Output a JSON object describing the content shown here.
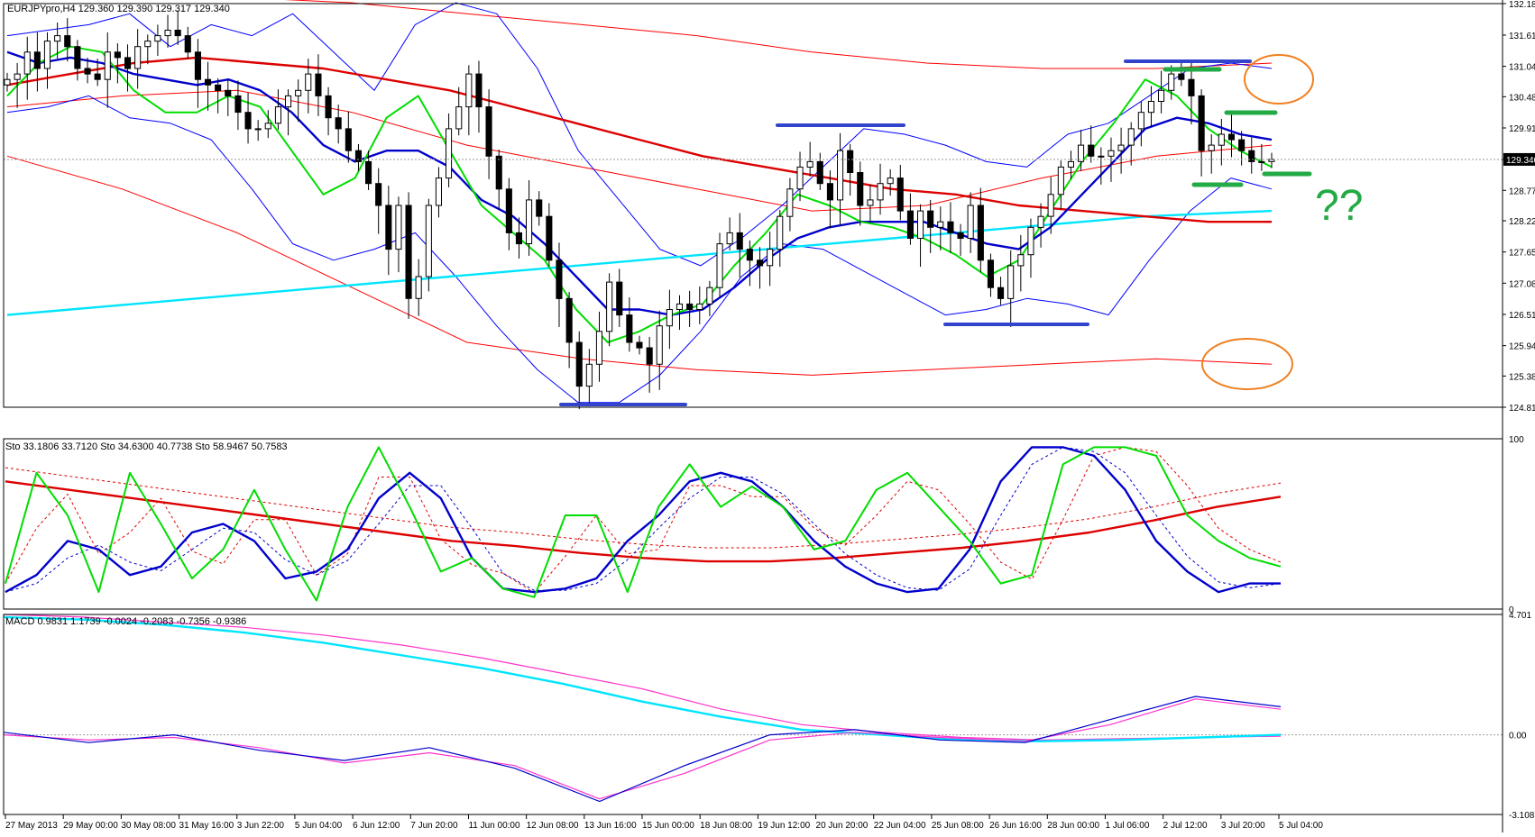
{
  "colors": {
    "background": "#ffffff",
    "frame": "#000000",
    "candle_up_body": "#ffffff",
    "candle_down_body": "#000000",
    "bollinger_red": "#ff0000",
    "bollinger_blue": "#0000ff",
    "ma_green": "#00dd00",
    "ma_blue": "#0000cc",
    "ma_red": "#dd0000",
    "ma_cyan": "#00e5ff",
    "annotation_blue": "#3344cc",
    "annotation_green": "#22aa44",
    "annotation_orange": "#f08020",
    "macd_magenta": "#ff33cc",
    "macd_cyan": "#00e5ff",
    "price_label_bg": "#000000",
    "price_label_fg": "#ffffff"
  },
  "main_panel": {
    "header": "EURJPYpro,H4  129.360 129.390 129.317 129.340",
    "y_ticks": [
      "132.185",
      "131.610",
      "131.040",
      "130.485",
      "129.915",
      "129.340",
      "128.775",
      "128.220",
      "127.650",
      "127.080",
      "126.510",
      "125.940",
      "125.385",
      "124.815"
    ],
    "current_price_label": "129.340",
    "question_annotation": "??"
  },
  "stoch_panel": {
    "header": "Sto 33.1806 33.7120  Sto 34.6300 40.7738  Sto 58.9467 50.7583",
    "y_ticks": [
      "100",
      "0"
    ]
  },
  "macd_panel": {
    "header": "MACD 0.9831 1.1739 -0.0024 -0.2083 -0.7356 -0.9386",
    "y_ticks": [
      "4.701",
      "0.00",
      "-3.1087"
    ]
  },
  "x_ticks": [
    "27 May 2013",
    "29 May 00:00",
    "30 May 08:00",
    "31 May 16:00",
    "3 Jun 22:00",
    "5 Jun 04:00",
    "6 Jun 12:00",
    "7 Jun 20:00",
    "11 Jun 00:00",
    "12 Jun 08:00",
    "13 Jun 16:00",
    "15 Jun 00:00",
    "18 Jun 08:00",
    "19 Jun 12:00",
    "20 Jun 20:00",
    "22 Jun 04:00",
    "25 Jun 08:00",
    "26 Jun 16:00",
    "28 Jun 00:00",
    "1 Jul 06:00",
    "2 Jul 12:00",
    "3 Jul 20:00",
    "5 Jul 04:00"
  ],
  "chart_data": [
    {
      "type": "line",
      "subtype": "candlestick",
      "ylim": [
        124.815,
        132.185
      ],
      "x_ticks": [
        "27 May 2013",
        "29 May 00:00",
        "30 May 08:00",
        "31 May 16:00",
        "3 Jun 22:00",
        "5 Jun 04:00",
        "6 Jun 12:00",
        "7 Jun 20:00",
        "11 Jun 00:00",
        "12 Jun 08:00",
        "13 Jun 16:00",
        "15 Jun 00:00",
        "18 Jun 08:00",
        "19 Jun 12:00",
        "20 Jun 20:00",
        "22 Jun 04:00",
        "25 Jun 08:00",
        "26 Jun 16:00",
        "28 Jun 00:00",
        "1 Jul 06:00",
        "2 Jul 12:00",
        "3 Jul 20:00",
        "5 Jul 04:00"
      ],
      "series": [
        {
          "role": "price_close",
          "color": "#000000",
          "values": [
            130.8,
            130.9,
            131.3,
            131.0,
            131.5,
            131.6,
            131.4,
            131.0,
            130.9,
            130.8,
            131.3,
            131.2,
            131.0,
            131.4,
            131.5,
            131.6,
            131.7,
            131.6,
            131.3,
            130.8,
            130.7,
            130.6,
            130.5,
            130.2,
            129.9,
            129.9,
            130.0,
            130.3,
            130.5,
            130.6,
            130.9,
            130.5,
            130.1,
            129.9,
            129.5,
            129.3,
            128.9,
            128.5,
            127.7,
            128.5,
            126.8,
            127.2,
            128.5,
            129.0,
            129.9,
            130.3,
            130.9,
            130.3,
            129.4,
            128.8,
            128.0,
            127.8,
            128.6,
            128.3,
            127.5,
            126.8,
            126.0,
            125.2,
            125.6,
            126.2,
            127.1,
            126.5,
            126.0,
            125.9,
            125.6,
            126.3,
            126.6,
            126.7,
            126.6,
            126.7,
            127.0,
            127.8,
            128.0,
            127.7,
            127.5,
            127.4,
            127.7,
            128.3,
            128.8,
            129.2,
            129.3,
            128.9,
            128.6,
            129.5,
            129.1,
            128.5,
            128.6,
            128.9,
            129.0,
            128.4,
            127.9,
            128.4,
            128.1,
            128.2,
            128.0,
            127.9,
            128.5,
            127.5,
            127.0,
            126.8,
            127.4,
            127.6,
            128.1,
            128.3,
            128.7,
            129.2,
            129.3,
            129.6,
            129.4,
            129.4,
            129.5,
            129.6,
            129.9,
            130.2,
            130.4,
            130.6,
            130.9,
            130.8,
            130.5,
            129.5,
            129.6,
            129.8,
            129.7,
            129.5,
            129.3,
            129.3,
            129.34
          ]
        },
        {
          "role": "ma_green",
          "color": "#00dd00",
          "values": [
            130.5,
            131.1,
            131.4,
            131.3,
            130.6,
            130.2,
            130.2,
            130.5,
            130.3,
            129.5,
            128.7,
            129.0,
            130.1,
            130.5,
            129.5,
            128.5,
            128.0,
            127.5,
            126.6,
            126.0,
            126.2,
            126.5,
            126.7,
            127.4,
            128.0,
            128.7,
            128.5,
            128.2,
            128.1,
            127.9,
            127.6,
            127.2,
            127.5,
            128.4,
            129.3,
            130.0,
            130.8,
            130.5,
            129.9,
            129.5,
            129.2
          ]
        },
        {
          "role": "ma_blue",
          "color": "#0000cc",
          "values": [
            131.3,
            131.1,
            131.2,
            131.1,
            130.9,
            130.8,
            130.7,
            130.8,
            130.6,
            130.2,
            129.6,
            129.3,
            129.5,
            129.5,
            129.2,
            128.6,
            128.3,
            127.8,
            127.2,
            126.6,
            126.6,
            126.5,
            126.6,
            127.0,
            127.5,
            127.9,
            128.1,
            128.2,
            128.2,
            128.2,
            128.0,
            127.8,
            127.7,
            128.1,
            128.7,
            129.3,
            129.9,
            130.1,
            130.0,
            129.8,
            129.7
          ]
        },
        {
          "role": "ma_red",
          "color": "#dd0000",
          "values": [
            130.7,
            130.9,
            131.1,
            131.2,
            131.1,
            131.0,
            130.8,
            130.6,
            130.3,
            130.0,
            129.7,
            129.4,
            129.2,
            129.0,
            128.8,
            128.7,
            128.5,
            128.4,
            128.3,
            128.2,
            128.2
          ]
        },
        {
          "role": "ma_cyan",
          "color": "#00e5ff",
          "values": [
            126.5,
            126.6,
            126.7,
            126.8,
            126.9,
            127.0,
            127.1,
            127.2,
            127.3,
            127.4,
            127.5,
            127.6,
            127.7,
            127.8,
            127.9,
            128.0,
            128.1,
            128.2,
            128.3,
            128.35,
            128.4
          ]
        },
        {
          "role": "bb_blue_upper",
          "color": "#0000ff",
          "values": [
            131.6,
            131.7,
            131.8,
            132.0,
            131.4,
            131.8,
            131.6,
            132.0,
            131.3,
            130.6,
            131.8,
            132.2,
            132.0,
            131.0,
            129.5,
            128.6,
            127.7,
            127.4,
            127.9,
            128.5,
            129.2,
            129.9,
            129.8,
            129.6,
            129.3,
            129.2,
            129.8,
            130.0,
            130.5,
            131.0,
            131.1,
            131.0
          ]
        },
        {
          "role": "bb_blue_lower",
          "color": "#0000ff",
          "values": [
            130.2,
            130.3,
            130.5,
            130.1,
            130.0,
            129.7,
            128.8,
            127.8,
            127.5,
            127.7,
            128.0,
            127.2,
            126.3,
            125.5,
            124.9,
            124.9,
            125.4,
            126.2,
            127.2,
            127.8,
            127.7,
            127.3,
            126.9,
            126.5,
            126.6,
            126.8,
            126.7,
            126.5,
            127.5,
            128.4,
            129.0,
            128.8
          ]
        },
        {
          "role": "bb_red_upper",
          "color": "#ff0000",
          "values": [
            132.3,
            132.3,
            132.3,
            132.2,
            132.0,
            131.8,
            131.6,
            131.3,
            131.1,
            131.0,
            131.0,
            131.1
          ]
        },
        {
          "role": "bb_red_mid",
          "color": "#ff0000",
          "values": [
            130.3,
            130.5,
            130.6,
            130.2,
            129.6,
            129.2,
            128.8,
            128.4,
            128.5,
            129.0,
            129.4,
            129.6
          ]
        },
        {
          "role": "bb_red_lower",
          "color": "#ff0000",
          "values": [
            129.4,
            128.8,
            128.0,
            127.0,
            126.0,
            125.7,
            125.5,
            125.4,
            125.5,
            125.6,
            125.7,
            125.6
          ]
        }
      ]
    },
    {
      "type": "line",
      "ylim": [
        0,
        100
      ],
      "series": [
        {
          "role": "sto_fast",
          "color": "#00dd00",
          "values": [
            15,
            80,
            55,
            10,
            80,
            50,
            18,
            35,
            70,
            35,
            5,
            60,
            95,
            60,
            22,
            30,
            12,
            7,
            55,
            55,
            10,
            60,
            85,
            60,
            72,
            60,
            35,
            40,
            70,
            80,
            60,
            40,
            15,
            20,
            85,
            95,
            95,
            90,
            55,
            40,
            30,
            25
          ]
        },
        {
          "role": "sto_mid",
          "color": "#0000cc",
          "values": [
            10,
            20,
            40,
            35,
            20,
            25,
            45,
            50,
            40,
            18,
            22,
            35,
            65,
            80,
            65,
            30,
            12,
            10,
            12,
            18,
            40,
            55,
            75,
            80,
            75,
            60,
            40,
            25,
            15,
            10,
            12,
            35,
            75,
            95,
            95,
            90,
            70,
            40,
            22,
            10,
            15,
            15
          ]
        },
        {
          "role": "sto_slow",
          "color": "#dd0000",
          "values": [
            75,
            70,
            65,
            60,
            55,
            50,
            45,
            40,
            37,
            33,
            30,
            28,
            28,
            30,
            33,
            36,
            40,
            45,
            52,
            60,
            66
          ]
        }
      ]
    },
    {
      "type": "line",
      "ylim": [
        -3.1087,
        4.701
      ],
      "series": [
        {
          "role": "macd_long",
          "color": "#00e5ff",
          "values": [
            4.6,
            4.5,
            4.3,
            4.0,
            3.6,
            3.1,
            2.6,
            2.0,
            1.3,
            0.7,
            0.2,
            0.0,
            -0.2,
            -0.25,
            -0.2,
            -0.1,
            0.0
          ]
        },
        {
          "role": "macd_long_signal",
          "color": "#ff33cc",
          "values": [
            4.7,
            4.6,
            4.4,
            4.2,
            3.9,
            3.5,
            3.0,
            2.4,
            1.8,
            1.0,
            0.4,
            0.1,
            -0.1,
            -0.2,
            -0.15,
            -0.1,
            -0.05
          ]
        },
        {
          "role": "macd_short",
          "color": "#0000cc",
          "values": [
            0.1,
            -0.3,
            0.0,
            -0.6,
            -1.0,
            -0.5,
            -1.3,
            -2.6,
            -1.2,
            0.0,
            0.2,
            -0.2,
            -0.3,
            0.6,
            1.5,
            1.1
          ]
        },
        {
          "role": "macd_short_signal",
          "color": "#ff33cc",
          "values": [
            0.0,
            -0.2,
            -0.1,
            -0.5,
            -1.1,
            -0.7,
            -1.2,
            -2.5,
            -1.5,
            -0.2,
            0.1,
            -0.1,
            -0.25,
            0.4,
            1.4,
            1.0
          ]
        }
      ]
    }
  ]
}
